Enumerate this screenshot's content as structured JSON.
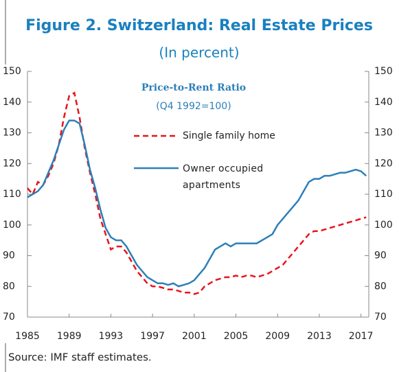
{
  "chart_data": {
    "type": "line",
    "title": "Figure 2. Switzerland: Real Estate Prices",
    "subtitle": "(In percent)",
    "annotations": [
      "Price-to-Rent Ratio",
      "(Q4 1992=100)"
    ],
    "source": "Source: IMF staff estimates.",
    "x": [
      1985,
      1985.5,
      1986,
      1986.5,
      1987,
      1987.5,
      1988,
      1988.5,
      1989,
      1989.5,
      1990,
      1990.5,
      1991,
      1991.5,
      1992,
      1992.5,
      1993,
      1993.5,
      1994,
      1994.5,
      1995,
      1995.5,
      1996,
      1996.5,
      1997,
      1997.5,
      1998,
      1998.5,
      1999,
      1999.5,
      2000,
      2000.5,
      2001,
      2001.5,
      2002,
      2002.5,
      2003,
      2003.5,
      2004,
      2004.5,
      2005,
      2005.5,
      2006,
      2006.5,
      2007,
      2007.5,
      2008,
      2008.5,
      2009,
      2009.5,
      2010,
      2010.5,
      2011,
      2011.5,
      2012,
      2012.5,
      2013,
      2013.5,
      2014,
      2014.5,
      2015,
      2015.5,
      2016,
      2016.5,
      2017,
      2017.5
    ],
    "series": [
      {
        "name": "Single family home",
        "color": "#e8141c",
        "dash": true,
        "values": [
          112,
          110,
          114,
          113,
          116,
          120,
          126,
          135,
          142,
          143,
          135,
          125,
          117,
          110,
          102,
          97,
          92,
          93,
          93,
          91,
          88,
          85,
          83,
          81,
          80,
          80,
          79.5,
          79,
          79,
          78.5,
          78,
          78,
          77.5,
          78,
          80,
          81,
          82,
          82.5,
          83,
          83,
          83.5,
          83,
          83.5,
          83.5,
          83,
          83.5,
          84,
          85,
          86,
          87,
          89,
          91,
          93,
          95,
          97,
          98,
          98,
          98.5,
          99,
          99.5,
          100,
          100.5,
          101,
          101.5,
          102,
          102.5
        ]
      },
      {
        "name": "Owner occupied apartments",
        "color": "#2b7fb8",
        "dash": false,
        "values": [
          109,
          110,
          111,
          113,
          117,
          121,
          126,
          131,
          134,
          134,
          133,
          126,
          118,
          112,
          105,
          99,
          96,
          95,
          95,
          93,
          90,
          87,
          85,
          83,
          82,
          81,
          81,
          80.5,
          81,
          80,
          80.5,
          81,
          82,
          84,
          86,
          89,
          92,
          93,
          94,
          93,
          94,
          94,
          94,
          94,
          94,
          95,
          96,
          97,
          100,
          102,
          104,
          106,
          108,
          111,
          114,
          115,
          115,
          116,
          116,
          116.5,
          117,
          117,
          117.5,
          118,
          117.5,
          116
        ]
      }
    ],
    "xlim": [
      1985,
      2017.75
    ],
    "xticks": [
      1985,
      1989,
      1993,
      1997,
      2001,
      2005,
      2009,
      2013,
      2017
    ],
    "ylim": [
      70,
      150
    ],
    "yticks": [
      70,
      80,
      90,
      100,
      110,
      120,
      130,
      140,
      150
    ],
    "y2lim": [
      70,
      150
    ],
    "y2ticks": [
      70,
      80,
      90,
      100,
      110,
      120,
      130,
      140,
      150
    ]
  }
}
